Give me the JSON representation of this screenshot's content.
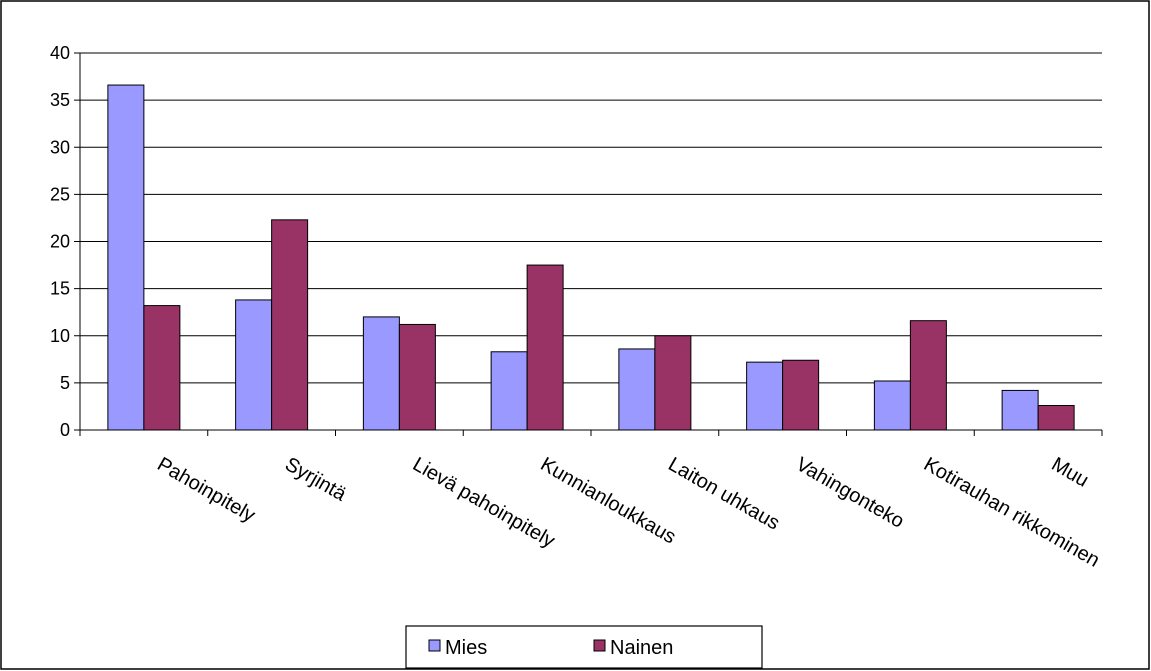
{
  "chart_data": {
    "type": "bar",
    "categories": [
      "Pahoinpitely",
      "Syrjintä",
      "Lievä pahoinpitely",
      "Kunnianloukkaus",
      "Laiton uhkaus",
      "Vahingonteko",
      "Kotirauhan rikkominen",
      "Muu"
    ],
    "series": [
      {
        "name": "Mies",
        "values": [
          36.6,
          13.8,
          12.0,
          8.3,
          8.6,
          7.2,
          5.2,
          4.2
        ],
        "color": "#9999ff"
      },
      {
        "name": "Nainen",
        "values": [
          13.2,
          22.3,
          11.2,
          17.5,
          10.0,
          7.4,
          11.6,
          2.6
        ],
        "color": "#993366"
      }
    ],
    "y_ticks": [
      "0",
      "5",
      "10",
      "15",
      "20",
      "25",
      "30",
      "35",
      "40"
    ],
    "ylim": [
      0,
      40
    ],
    "grid": true,
    "legend_position": "bottom",
    "title": "",
    "xlabel": "",
    "ylabel": ""
  }
}
